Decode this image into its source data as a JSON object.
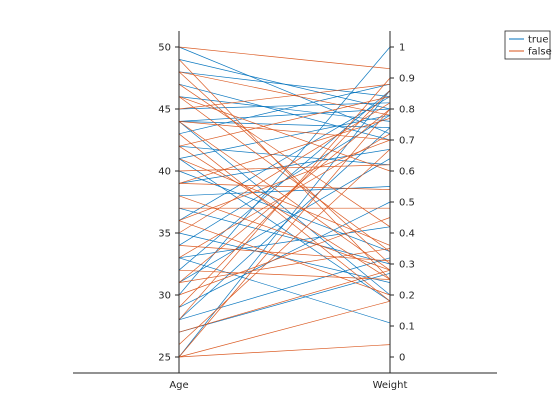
{
  "chart_data": {
    "type": "parallel-coordinates",
    "title": "",
    "axes": [
      {
        "name": "Age",
        "range": [
          25,
          50
        ],
        "ticks": [
          25,
          30,
          35,
          40,
          45,
          50
        ]
      },
      {
        "name": "Weight",
        "range": [
          0,
          1
        ],
        "ticks": [
          0,
          0.1,
          0.2,
          0.3,
          0.4,
          0.5,
          0.6,
          0.7,
          0.8,
          0.9,
          1
        ]
      }
    ],
    "grid": false,
    "legend": {
      "placement": "top-right"
    },
    "series": [
      {
        "name": "true",
        "color": "#0072BD",
        "lines": [
          [
            50,
            0.72
          ],
          [
            49,
            0.8
          ],
          [
            48,
            0.84
          ],
          [
            47,
            0.7
          ],
          [
            46,
            0.76
          ],
          [
            45,
            0.82
          ],
          [
            44,
            0.74
          ],
          [
            44,
            0.2
          ],
          [
            43,
            0.88
          ],
          [
            42,
            0.62
          ],
          [
            41,
            0.78
          ],
          [
            40,
            0.34
          ],
          [
            39,
            0.67
          ],
          [
            38,
            0.55
          ],
          [
            37,
            0.3
          ],
          [
            36,
            0.84
          ],
          [
            35,
            0.24
          ],
          [
            34,
            0.78
          ],
          [
            33,
            0.42
          ],
          [
            33,
            0.11
          ],
          [
            32,
            0.86
          ],
          [
            31,
            0.64
          ],
          [
            30,
            1.0
          ],
          [
            29,
            0.5
          ],
          [
            28,
            0.32
          ],
          [
            28,
            0.74
          ],
          [
            27,
            0.27
          ],
          [
            25,
            0.86
          ],
          [
            44,
            0.8
          ],
          [
            41,
            0.18
          ]
        ]
      },
      {
        "name": "false",
        "color": "#D95319",
        "lines": [
          [
            50,
            0.93
          ],
          [
            49,
            0.25
          ],
          [
            48,
            0.78
          ],
          [
            47,
            0.42
          ],
          [
            46,
            0.34
          ],
          [
            45,
            0.88
          ],
          [
            44,
            0.28
          ],
          [
            43,
            0.18
          ],
          [
            42,
            0.84
          ],
          [
            41,
            0.36
          ],
          [
            40,
            0.62
          ],
          [
            39,
            0.77
          ],
          [
            38,
            0.28
          ],
          [
            37,
            0.48
          ],
          [
            36,
            0.2
          ],
          [
            35,
            0.82
          ],
          [
            34,
            0.31
          ],
          [
            33,
            0.72
          ],
          [
            32,
            0.25
          ],
          [
            31,
            0.8
          ],
          [
            30,
            0.45
          ],
          [
            29,
            0.86
          ],
          [
            28,
            0.9
          ],
          [
            27,
            0.28
          ],
          [
            26,
            0.67
          ],
          [
            25,
            0.04
          ],
          [
            25,
            0.8
          ],
          [
            25,
            0.18
          ],
          [
            39,
            0.54
          ],
          [
            42,
            0.25
          ],
          [
            44,
            0.7
          ],
          [
            46,
            0.6
          ],
          [
            36,
            0.7
          ],
          [
            31,
            0.35
          ],
          [
            48,
            0.3
          ]
        ]
      }
    ]
  }
}
